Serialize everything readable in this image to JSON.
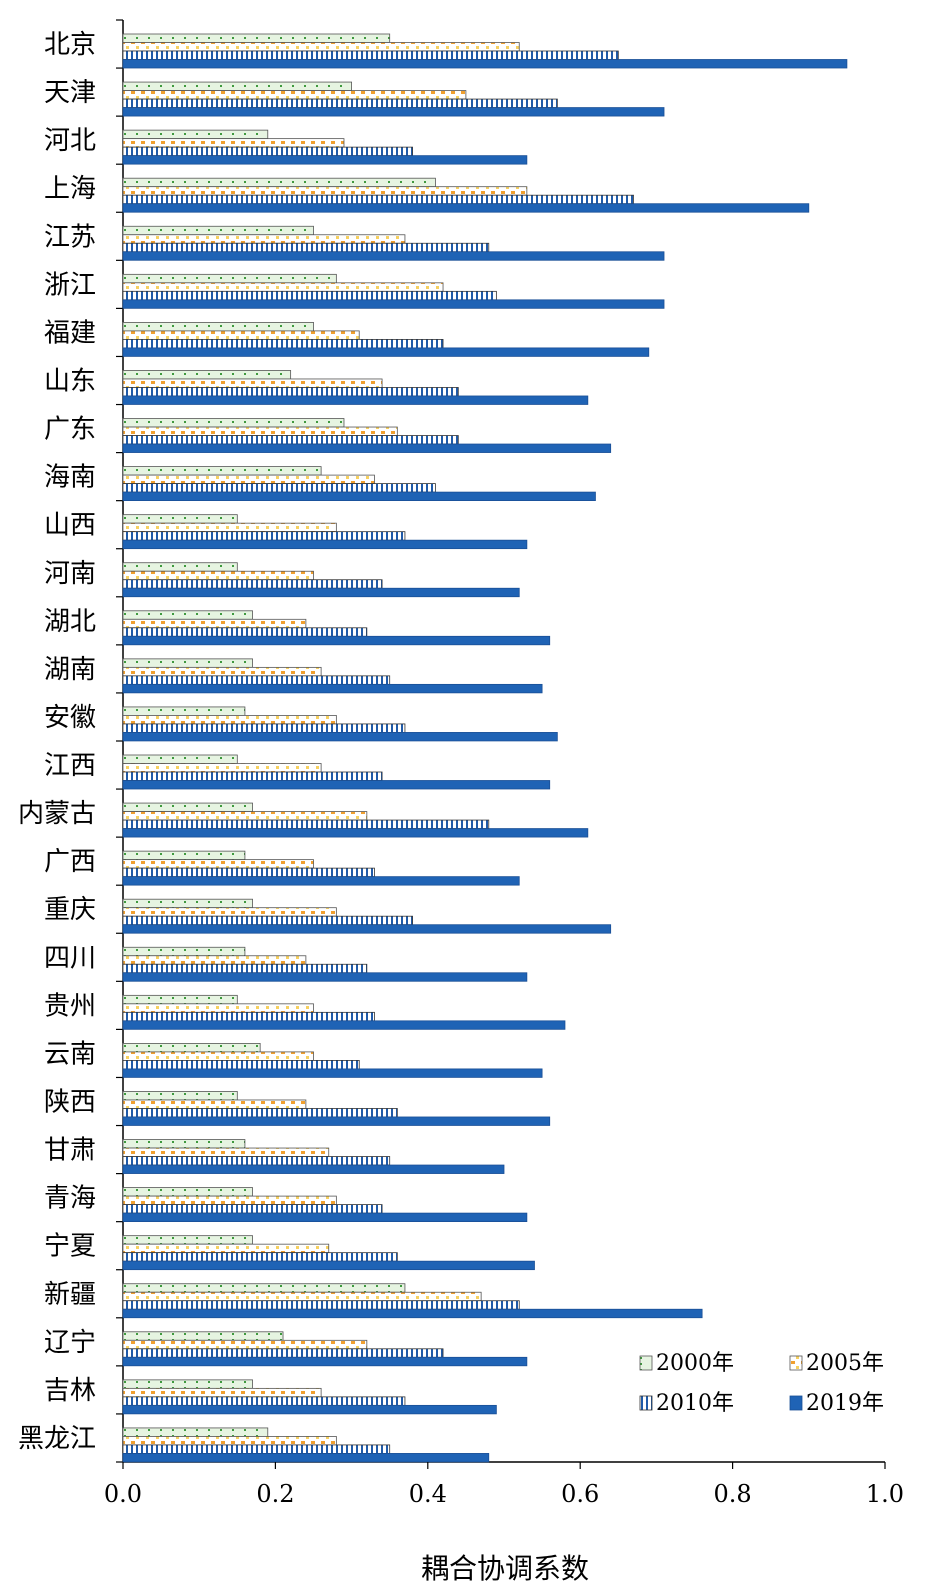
{
  "chart_data": {
    "type": "bar",
    "orientation": "horizontal",
    "xlabel": "耦合协调系数",
    "xlim": [
      0.0,
      1.0
    ],
    "xticks": [
      "0.0",
      "0.2",
      "0.4",
      "0.6",
      "0.8",
      "1.0"
    ],
    "legend_position": "bottom-right",
    "categories": [
      "北京",
      "天津",
      "河北",
      "上海",
      "江苏",
      "浙江",
      "福建",
      "山东",
      "广东",
      "海南",
      "山西",
      "河南",
      "湖北",
      "湖南",
      "安徽",
      "江西",
      "内蒙古",
      "广西",
      "重庆",
      "四川",
      "贵州",
      "云南",
      "陕西",
      "甘肃",
      "青海",
      "宁夏",
      "新疆",
      "辽宁",
      "吉林",
      "黑龙江"
    ],
    "series": [
      {
        "name": "2000年",
        "color": "#d9efd6",
        "pattern": "dots-green",
        "values": [
          0.35,
          0.3,
          0.19,
          0.41,
          0.25,
          0.28,
          0.25,
          0.22,
          0.29,
          0.26,
          0.15,
          0.15,
          0.17,
          0.17,
          0.16,
          0.15,
          0.17,
          0.16,
          0.17,
          0.16,
          0.15,
          0.18,
          0.15,
          0.16,
          0.17,
          0.17,
          0.37,
          0.21,
          0.17,
          0.19
        ]
      },
      {
        "name": "2005年",
        "color": "#f5c842",
        "pattern": "orange-dashes",
        "values": [
          0.52,
          0.45,
          0.29,
          0.53,
          0.37,
          0.42,
          0.31,
          0.34,
          0.36,
          0.33,
          0.28,
          0.25,
          0.24,
          0.26,
          0.28,
          0.26,
          0.32,
          0.25,
          0.28,
          0.24,
          0.25,
          0.25,
          0.24,
          0.27,
          0.28,
          0.27,
          0.47,
          0.32,
          0.26,
          0.28
        ]
      },
      {
        "name": "2010年",
        "color": "#2a63b4",
        "pattern": "vertical-lines",
        "values": [
          0.65,
          0.57,
          0.38,
          0.67,
          0.48,
          0.49,
          0.42,
          0.44,
          0.44,
          0.41,
          0.37,
          0.34,
          0.32,
          0.35,
          0.37,
          0.34,
          0.48,
          0.33,
          0.38,
          0.32,
          0.33,
          0.31,
          0.36,
          0.35,
          0.34,
          0.36,
          0.52,
          0.42,
          0.37,
          0.35
        ]
      },
      {
        "name": "2019年",
        "color": "#1f63b5",
        "pattern": "solid",
        "values": [
          0.95,
          0.71,
          0.53,
          0.9,
          0.71,
          0.71,
          0.69,
          0.61,
          0.64,
          0.62,
          0.53,
          0.52,
          0.56,
          0.55,
          0.57,
          0.56,
          0.61,
          0.52,
          0.64,
          0.53,
          0.58,
          0.55,
          0.56,
          0.5,
          0.53,
          0.54,
          0.76,
          0.53,
          0.49,
          0.48
        ]
      }
    ]
  }
}
